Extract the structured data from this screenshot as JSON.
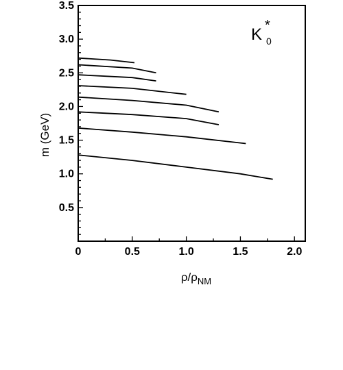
{
  "chart_data": {
    "type": "line",
    "xlabel": "ρ/ρNM",
    "xlabel_main": "ρ/ρ",
    "xlabel_sub": "NM",
    "ylabel": "m (GeV)",
    "annotation": "K0*",
    "annotation_main": "K",
    "annotation_sup": "*",
    "annotation_sub": "0",
    "xlim": [
      0,
      2.1
    ],
    "ylim": [
      0,
      3.5
    ],
    "xticks": [
      "0",
      "0.5",
      "1.0",
      "1.5",
      "2.0"
    ],
    "xtick_values": [
      0,
      0.5,
      1.0,
      1.5,
      2.0
    ],
    "yticks": [
      "0.5",
      "1.0",
      "1.5",
      "2.0",
      "2.5",
      "3.0",
      "3.5"
    ],
    "ytick_values": [
      0.5,
      1.0,
      1.5,
      2.0,
      2.5,
      3.0,
      3.5
    ],
    "grid": false,
    "series": [
      {
        "x": [
          0,
          0.5,
          1.0,
          1.5,
          1.8
        ],
        "y": [
          1.28,
          1.2,
          1.1,
          1.0,
          0.92
        ]
      },
      {
        "x": [
          0,
          0.5,
          1.0,
          1.55
        ],
        "y": [
          1.68,
          1.62,
          1.55,
          1.45
        ]
      },
      {
        "x": [
          0,
          0.5,
          1.0,
          1.3
        ],
        "y": [
          1.92,
          1.88,
          1.82,
          1.73
        ]
      },
      {
        "x": [
          0,
          0.5,
          1.0,
          1.3
        ],
        "y": [
          2.14,
          2.09,
          2.02,
          1.92
        ]
      },
      {
        "x": [
          0,
          0.5,
          1.0
        ],
        "y": [
          2.31,
          2.27,
          2.18
        ]
      },
      {
        "x": [
          0,
          0.5,
          0.72
        ],
        "y": [
          2.47,
          2.43,
          2.38
        ]
      },
      {
        "x": [
          0,
          0.5,
          0.72
        ],
        "y": [
          2.62,
          2.57,
          2.5
        ]
      },
      {
        "x": [
          0,
          0.3,
          0.52
        ],
        "y": [
          2.72,
          2.69,
          2.65
        ]
      }
    ]
  }
}
